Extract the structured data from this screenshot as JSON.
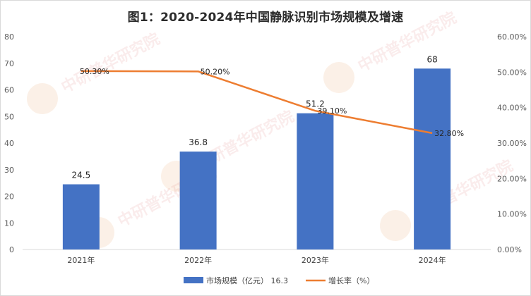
{
  "chart_data": {
    "type": "bar",
    "title": "图1：2020-2024年中国静脉识别市场规模及增速",
    "categories": [
      "2021年",
      "2022年",
      "2023年",
      "2024年"
    ],
    "series": [
      {
        "name": "市场规模（亿元） 16.3",
        "type": "bar",
        "axis": "left",
        "values": [
          24.5,
          36.8,
          51.2,
          68
        ],
        "labels": [
          "24.5",
          "36.8",
          "51.2",
          "68"
        ],
        "color": "#4472C4"
      },
      {
        "name": "增长率（%）",
        "type": "line",
        "axis": "right",
        "values": [
          50.3,
          50.2,
          39.1,
          32.8
        ],
        "labels": [
          "50.30%",
          "50.20%",
          "39.10%",
          "32.80%"
        ],
        "color": "#ED7D31"
      }
    ],
    "y_left": {
      "min": 0,
      "max": 80,
      "step": 10,
      "ticks": [
        "0",
        "10",
        "20",
        "30",
        "40",
        "50",
        "60",
        "70",
        "80"
      ]
    },
    "y_right": {
      "min": 0,
      "max": 60,
      "step": 10,
      "ticks": [
        "0.00%",
        "10.00%",
        "20.00%",
        "30.00%",
        "40.00%",
        "50.00%",
        "60.00%"
      ]
    },
    "grid": false,
    "legend_position": "bottom",
    "watermark": "ChinaIRN.COM 中研普华研究院 CIRN"
  }
}
